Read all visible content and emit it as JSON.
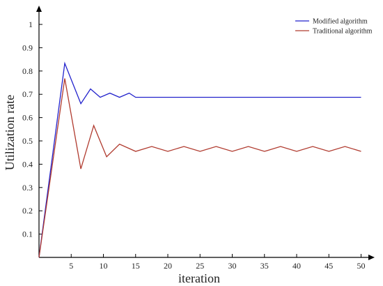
{
  "chart_data": {
    "type": "line",
    "xlabel": "iteration",
    "ylabel": "Utilization rate",
    "xlim": [
      0,
      52
    ],
    "ylim": [
      0,
      1.05
    ],
    "xticks": [
      5,
      10,
      15,
      20,
      25,
      30,
      35,
      40,
      45,
      50
    ],
    "yticks": [
      0.1,
      0.2,
      0.3,
      0.4,
      0.5,
      0.6,
      0.7,
      0.8,
      0.9,
      1
    ],
    "x_tick_labels": [
      "5",
      "10",
      "15",
      "20",
      "25",
      "30",
      "35",
      "40",
      "45",
      "50"
    ],
    "y_tick_labels": [
      "0.1",
      "0.2",
      "0.3",
      "0.4",
      "0.5",
      "0.6",
      "0.7",
      "0.8",
      "0.9",
      "1"
    ],
    "grid": false,
    "legend_position": "top-right",
    "series": [
      {
        "name": "Modified algorithm",
        "color": "#2222cc",
        "points": [
          [
            0,
            0
          ],
          [
            4,
            0.833
          ],
          [
            6.5,
            0.66
          ],
          [
            8,
            0.723
          ],
          [
            9.5,
            0.687
          ],
          [
            11,
            0.705
          ],
          [
            12.5,
            0.687
          ],
          [
            14,
            0.705
          ],
          [
            15,
            0.687
          ],
          [
            50,
            0.687
          ]
        ]
      },
      {
        "name": "Traditional algorithm",
        "color": "#b03a2e",
        "points": [
          [
            0,
            0
          ],
          [
            4,
            0.768
          ],
          [
            6.5,
            0.38
          ],
          [
            8.5,
            0.566
          ],
          [
            10.5,
            0.432
          ],
          [
            12.5,
            0.486
          ],
          [
            15,
            0.455
          ],
          [
            17.5,
            0.476
          ],
          [
            20,
            0.455
          ],
          [
            22.5,
            0.476
          ],
          [
            25,
            0.455
          ],
          [
            27.5,
            0.476
          ],
          [
            30,
            0.455
          ],
          [
            32.5,
            0.476
          ],
          [
            35,
            0.455
          ],
          [
            37.5,
            0.476
          ],
          [
            40,
            0.455
          ],
          [
            42.5,
            0.476
          ],
          [
            45,
            0.455
          ],
          [
            47.5,
            0.476
          ],
          [
            50,
            0.455
          ]
        ]
      }
    ]
  }
}
